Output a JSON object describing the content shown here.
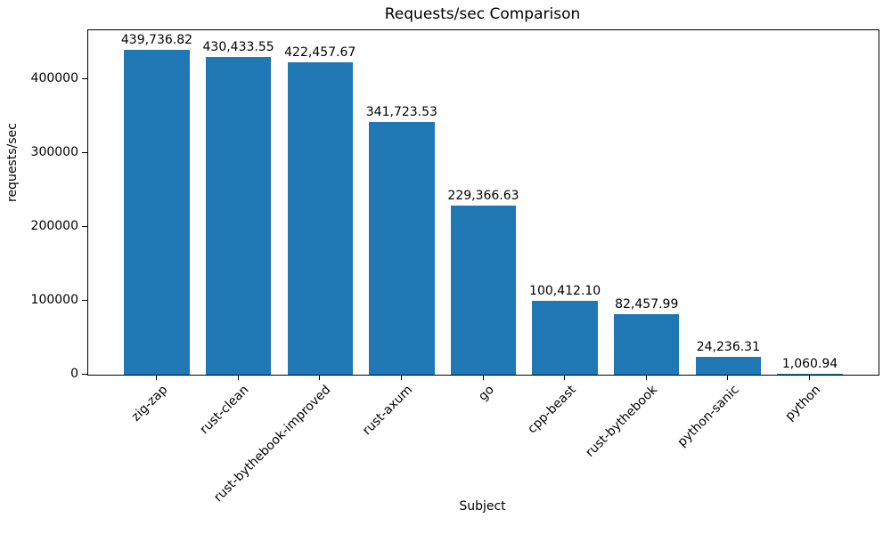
{
  "chart_data": {
    "type": "bar",
    "title": "Requests/sec Comparison",
    "xlabel": "Subject",
    "ylabel": "requests/sec",
    "categories": [
      "zig-zap",
      "rust-clean",
      "rust-bythebook-improved",
      "rust-axum",
      "go",
      "cpp-beast",
      "rust-bythebook",
      "python-sanic",
      "python"
    ],
    "values": [
      439736.82,
      430433.55,
      422457.67,
      341723.53,
      229366.63,
      100412.1,
      82457.99,
      24236.31,
      1060.94
    ],
    "value_labels": [
      "439,736.82",
      "430,433.55",
      "422,457.67",
      "341,723.53",
      "229,366.63",
      "100,412.10",
      "82,457.99",
      "24,236.31",
      "1,060.94"
    ],
    "yticks": [
      0,
      100000,
      200000,
      300000,
      400000
    ],
    "ytick_labels": [
      "0",
      "100000",
      "200000",
      "300000",
      "400000"
    ],
    "ylim": [
      0,
      466265
    ],
    "bar_color": "#1f77b4",
    "x_tick_rotation_deg": 45,
    "grid": false,
    "legend": "none"
  }
}
